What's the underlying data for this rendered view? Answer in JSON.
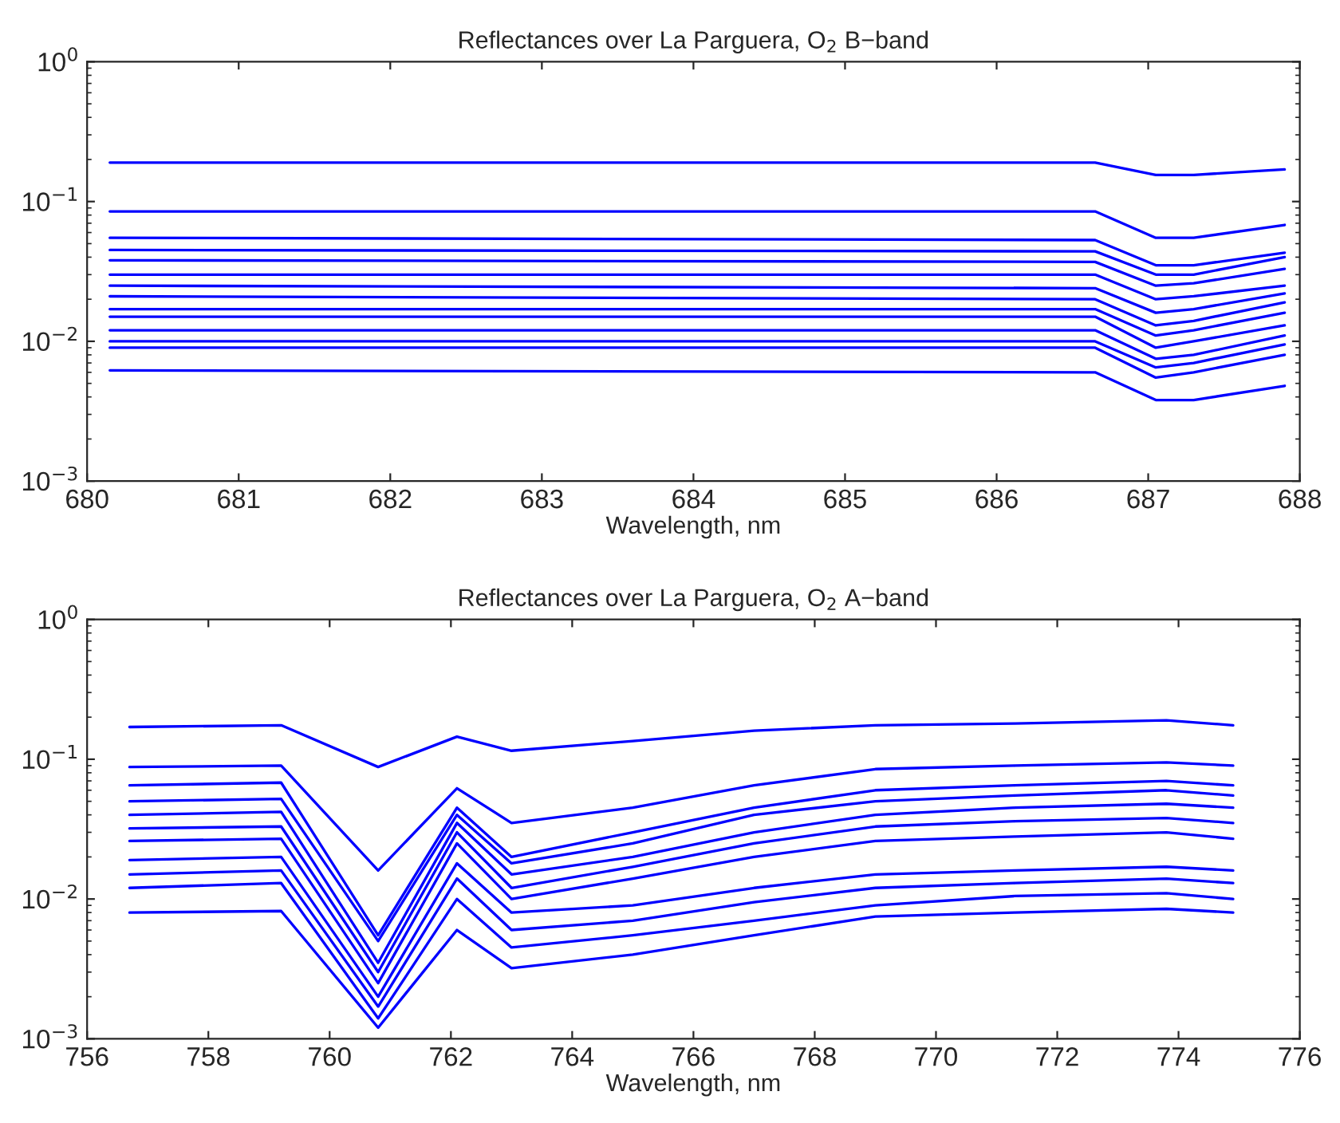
{
  "chart_data": [
    {
      "type": "line",
      "title": "Reflectances over La Parguera, O$_{2}$ B−band",
      "xlabel": "Wavelength, nm",
      "log": "y",
      "grid": false,
      "legend": false,
      "x": [
        680.15,
        686.65,
        687.05,
        687.3,
        687.9
      ],
      "xlim": [
        680,
        688
      ],
      "xticks": [
        680,
        681,
        682,
        683,
        684,
        685,
        686,
        687,
        688
      ],
      "ylim": [
        0.001,
        1
      ],
      "yticks": [
        {
          "value": 0.001,
          "label": "10$^{−3}$"
        },
        {
          "value": 0.01,
          "label": "10$^{−2}$"
        },
        {
          "value": 0.1,
          "label": "10$^{−1}$"
        },
        {
          "value": 1,
          "label": "10$^{0}$"
        }
      ],
      "series": [
        {
          "color": "#0000ff",
          "values": [
            0.19,
            0.19,
            0.155,
            0.155,
            0.17
          ]
        },
        {
          "color": "#0000ff",
          "values": [
            0.085,
            0.085,
            0.055,
            0.055,
            0.068
          ]
        },
        {
          "color": "#0000ff",
          "values": [
            0.055,
            0.053,
            0.035,
            0.035,
            0.043
          ]
        },
        {
          "color": "#0000ff",
          "values": [
            0.045,
            0.044,
            0.03,
            0.03,
            0.04
          ]
        },
        {
          "color": "#0000ff",
          "values": [
            0.038,
            0.037,
            0.025,
            0.026,
            0.033
          ]
        },
        {
          "color": "#0000ff",
          "values": [
            0.03,
            0.03,
            0.02,
            0.021,
            0.025
          ]
        },
        {
          "color": "#0000ff",
          "values": [
            0.025,
            0.024,
            0.016,
            0.017,
            0.022
          ]
        },
        {
          "color": "#0000ff",
          "values": [
            0.021,
            0.02,
            0.013,
            0.014,
            0.019
          ]
        },
        {
          "color": "#0000ff",
          "values": [
            0.017,
            0.017,
            0.011,
            0.012,
            0.016
          ]
        },
        {
          "color": "#0000ff",
          "values": [
            0.015,
            0.015,
            0.009,
            0.01,
            0.013
          ]
        },
        {
          "color": "#0000ff",
          "values": [
            0.012,
            0.012,
            0.0075,
            0.008,
            0.011
          ]
        },
        {
          "color": "#0000ff",
          "values": [
            0.01,
            0.01,
            0.0065,
            0.007,
            0.0095
          ]
        },
        {
          "color": "#0000ff",
          "values": [
            0.009,
            0.009,
            0.0055,
            0.006,
            0.008
          ]
        },
        {
          "color": "#0000ff",
          "values": [
            0.0062,
            0.006,
            0.0038,
            0.0038,
            0.0048
          ]
        }
      ]
    },
    {
      "type": "line",
      "title": "Reflectances over La Parguera, O$_{2}$ A−band",
      "xlabel": "Wavelength, nm",
      "log": "y",
      "grid": false,
      "legend": false,
      "x": [
        756.7,
        759.2,
        760.8,
        762.1,
        763.0,
        765,
        767,
        769,
        771.3,
        773.8,
        774.9
      ],
      "xlim": [
        756,
        776
      ],
      "xticks": [
        756,
        758,
        760,
        762,
        764,
        766,
        768,
        770,
        772,
        774,
        776
      ],
      "ylim": [
        0.001,
        1
      ],
      "yticks": [
        {
          "value": 0.001,
          "label": "10$^{−3}$"
        },
        {
          "value": 0.01,
          "label": "10$^{−2}$"
        },
        {
          "value": 0.1,
          "label": "10$^{−1}$"
        },
        {
          "value": 1,
          "label": "10$^{0}$"
        }
      ],
      "series": [
        {
          "color": "#0000ff",
          "values": [
            0.17,
            0.175,
            0.088,
            0.145,
            0.115,
            0.135,
            0.16,
            0.175,
            0.18,
            0.19,
            0.175
          ]
        },
        {
          "color": "#0000ff",
          "values": [
            0.088,
            0.09,
            0.016,
            0.062,
            0.035,
            0.045,
            0.065,
            0.085,
            0.09,
            0.095,
            0.09
          ]
        },
        {
          "color": "#0000ff",
          "values": [
            0.065,
            0.068,
            0.0055,
            0.045,
            0.02,
            0.03,
            0.045,
            0.06,
            0.065,
            0.07,
            0.065
          ]
        },
        {
          "color": "#0000ff",
          "values": [
            0.05,
            0.052,
            0.005,
            0.04,
            0.018,
            0.025,
            0.04,
            0.05,
            0.055,
            0.06,
            0.055
          ]
        },
        {
          "color": "#0000ff",
          "values": [
            0.04,
            0.042,
            0.0035,
            0.035,
            0.015,
            0.02,
            0.03,
            0.04,
            0.045,
            0.048,
            0.045
          ]
        },
        {
          "color": "#0000ff",
          "values": [
            0.032,
            0.033,
            0.003,
            0.03,
            0.012,
            0.017,
            0.025,
            0.033,
            0.036,
            0.038,
            0.035
          ]
        },
        {
          "color": "#0000ff",
          "values": [
            0.026,
            0.027,
            0.0025,
            0.025,
            0.01,
            0.014,
            0.02,
            0.026,
            0.028,
            0.03,
            0.027
          ]
        },
        {
          "color": "#0000ff",
          "values": [
            0.019,
            0.02,
            0.002,
            0.018,
            0.008,
            0.009,
            0.012,
            0.015,
            0.016,
            0.017,
            0.016
          ]
        },
        {
          "color": "#0000ff",
          "values": [
            0.015,
            0.016,
            0.0017,
            0.014,
            0.006,
            0.007,
            0.0095,
            0.012,
            0.013,
            0.014,
            0.013
          ]
        },
        {
          "color": "#0000ff",
          "values": [
            0.012,
            0.013,
            0.0014,
            0.01,
            0.0045,
            0.0055,
            0.007,
            0.009,
            0.0105,
            0.011,
            0.01
          ]
        },
        {
          "color": "#0000ff",
          "values": [
            0.008,
            0.0082,
            0.0012,
            0.006,
            0.0032,
            0.004,
            0.0055,
            0.0075,
            0.008,
            0.0085,
            0.008
          ]
        }
      ]
    }
  ]
}
